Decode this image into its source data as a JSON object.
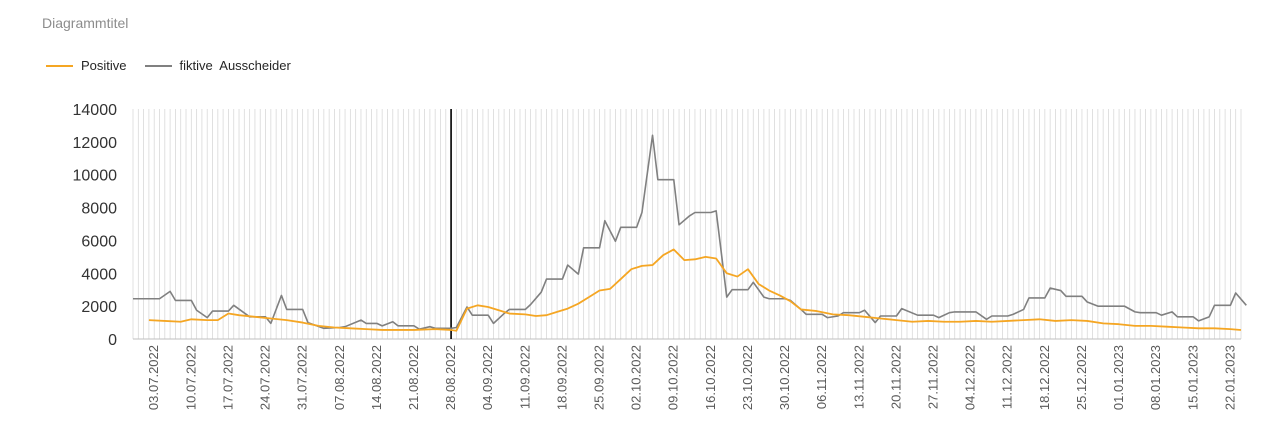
{
  "chart_data": {
    "type": "line",
    "title": "Diagrammtitel",
    "xlabel": "",
    "ylabel": "",
    "ylim": [
      0,
      14000
    ],
    "yticks": [
      0,
      2000,
      4000,
      6000,
      8000,
      10000,
      12000,
      14000
    ],
    "grid": "vertical-daily",
    "legend_position": "top-left",
    "x_start": "2022-06-29",
    "x_end": "2023-01-24",
    "x_tick_labels": [
      "03.07.2022",
      "10.07.2022",
      "17.07.2022",
      "24.07.2022",
      "31.07.2022",
      "07.08.2022",
      "14.08.2022",
      "21.08.2022",
      "28.08.2022",
      "04.09.2022",
      "11.09.2022",
      "18.09.2022",
      "25.09.2022",
      "02.10.2022",
      "09.10.2022",
      "16.10.2022",
      "23.10.2022",
      "30.10.2022",
      "06.11.2022",
      "13.11.2022",
      "20.11.2022",
      "27.11.2022",
      "04.12.2022",
      "11.12.2022",
      "18.12.2022",
      "25.12.2022",
      "01.01.2023",
      "08.01.2023",
      "15.01.2023",
      "22.01.2023"
    ],
    "marker_line_date": "2022-08-28",
    "series": [
      {
        "name": "Positive",
        "color": "#F5A623",
        "points": [
          [
            "2022-07-02",
            1150
          ],
          [
            "2022-07-05",
            1100
          ],
          [
            "2022-07-08",
            1050
          ],
          [
            "2022-07-10",
            1200
          ],
          [
            "2022-07-13",
            1150
          ],
          [
            "2022-07-15",
            1150
          ],
          [
            "2022-07-17",
            1550
          ],
          [
            "2022-07-19",
            1450
          ],
          [
            "2022-07-22",
            1350
          ],
          [
            "2022-07-25",
            1250
          ],
          [
            "2022-07-28",
            1150
          ],
          [
            "2022-07-31",
            1000
          ],
          [
            "2022-08-03",
            800
          ],
          [
            "2022-08-06",
            700
          ],
          [
            "2022-08-09",
            650
          ],
          [
            "2022-08-12",
            600
          ],
          [
            "2022-08-15",
            550
          ],
          [
            "2022-08-18",
            550
          ],
          [
            "2022-08-21",
            550
          ],
          [
            "2022-08-25",
            600
          ],
          [
            "2022-08-28",
            550
          ],
          [
            "2022-08-29",
            500
          ],
          [
            "2022-08-31",
            1850
          ],
          [
            "2022-09-02",
            2050
          ],
          [
            "2022-09-04",
            1950
          ],
          [
            "2022-09-06",
            1750
          ],
          [
            "2022-09-08",
            1550
          ],
          [
            "2022-09-11",
            1500
          ],
          [
            "2022-09-13",
            1400
          ],
          [
            "2022-09-15",
            1450
          ],
          [
            "2022-09-17",
            1650
          ],
          [
            "2022-09-19",
            1850
          ],
          [
            "2022-09-21",
            2150
          ],
          [
            "2022-09-23",
            2550
          ],
          [
            "2022-09-25",
            2950
          ],
          [
            "2022-09-27",
            3050
          ],
          [
            "2022-09-29",
            3650
          ],
          [
            "2022-10-01",
            4250
          ],
          [
            "2022-10-03",
            4450
          ],
          [
            "2022-10-05",
            4500
          ],
          [
            "2022-10-07",
            5100
          ],
          [
            "2022-10-09",
            5450
          ],
          [
            "2022-10-11",
            4800
          ],
          [
            "2022-10-13",
            4850
          ],
          [
            "2022-10-15",
            5000
          ],
          [
            "2022-10-17",
            4900
          ],
          [
            "2022-10-19",
            4000
          ],
          [
            "2022-10-21",
            3800
          ],
          [
            "2022-10-23",
            4250
          ],
          [
            "2022-10-25",
            3350
          ],
          [
            "2022-10-27",
            2950
          ],
          [
            "2022-10-29",
            2650
          ],
          [
            "2022-10-31",
            2300
          ],
          [
            "2022-11-02",
            1800
          ],
          [
            "2022-11-05",
            1700
          ],
          [
            "2022-11-08",
            1500
          ],
          [
            "2022-11-11",
            1450
          ],
          [
            "2022-11-14",
            1350
          ],
          [
            "2022-11-17",
            1250
          ],
          [
            "2022-11-20",
            1150
          ],
          [
            "2022-11-23",
            1050
          ],
          [
            "2022-11-26",
            1100
          ],
          [
            "2022-11-29",
            1050
          ],
          [
            "2022-12-02",
            1050
          ],
          [
            "2022-12-05",
            1100
          ],
          [
            "2022-12-08",
            1050
          ],
          [
            "2022-12-11",
            1100
          ],
          [
            "2022-12-14",
            1150
          ],
          [
            "2022-12-17",
            1200
          ],
          [
            "2022-12-20",
            1100
          ],
          [
            "2022-12-23",
            1150
          ],
          [
            "2022-12-26",
            1100
          ],
          [
            "2022-12-29",
            950
          ],
          [
            "2023-01-01",
            900
          ],
          [
            "2023-01-04",
            800
          ],
          [
            "2023-01-07",
            800
          ],
          [
            "2023-01-10",
            750
          ],
          [
            "2023-01-13",
            700
          ],
          [
            "2023-01-16",
            650
          ],
          [
            "2023-01-19",
            650
          ],
          [
            "2023-01-22",
            600
          ],
          [
            "2023-01-24",
            550
          ]
        ]
      },
      {
        "name": "fiktive  Ausscheider",
        "color": "#808080",
        "points": [
          [
            "2022-06-29",
            2450
          ],
          [
            "2022-07-04",
            2450
          ],
          [
            "2022-07-06",
            2900
          ],
          [
            "2022-07-07",
            2350
          ],
          [
            "2022-07-10",
            2350
          ],
          [
            "2022-07-11",
            1750
          ],
          [
            "2022-07-13",
            1300
          ],
          [
            "2022-07-14",
            1700
          ],
          [
            "2022-07-17",
            1700
          ],
          [
            "2022-07-18",
            2050
          ],
          [
            "2022-07-21",
            1350
          ],
          [
            "2022-07-24",
            1350
          ],
          [
            "2022-07-25",
            950
          ],
          [
            "2022-07-27",
            2650
          ],
          [
            "2022-07-28",
            1800
          ],
          [
            "2022-07-31",
            1800
          ],
          [
            "2022-08-01",
            1000
          ],
          [
            "2022-08-04",
            650
          ],
          [
            "2022-08-07",
            700
          ],
          [
            "2022-08-08",
            750
          ],
          [
            "2022-08-11",
            1150
          ],
          [
            "2022-08-12",
            950
          ],
          [
            "2022-08-14",
            950
          ],
          [
            "2022-08-15",
            800
          ],
          [
            "2022-08-17",
            1050
          ],
          [
            "2022-08-18",
            800
          ],
          [
            "2022-08-21",
            800
          ],
          [
            "2022-08-22",
            600
          ],
          [
            "2022-08-24",
            750
          ],
          [
            "2022-08-25",
            650
          ],
          [
            "2022-08-28",
            650
          ],
          [
            "2022-08-29",
            700
          ],
          [
            "2022-08-31",
            1950
          ],
          [
            "2022-09-01",
            1450
          ],
          [
            "2022-09-04",
            1450
          ],
          [
            "2022-09-05",
            950
          ],
          [
            "2022-09-07",
            1550
          ],
          [
            "2022-09-08",
            1800
          ],
          [
            "2022-09-11",
            1800
          ],
          [
            "2022-09-12",
            2100
          ],
          [
            "2022-09-14",
            2850
          ],
          [
            "2022-09-15",
            3650
          ],
          [
            "2022-09-18",
            3650
          ],
          [
            "2022-09-19",
            4500
          ],
          [
            "2022-09-21",
            3950
          ],
          [
            "2022-09-22",
            5550
          ],
          [
            "2022-09-25",
            5550
          ],
          [
            "2022-09-26",
            7200
          ],
          [
            "2022-09-28",
            5950
          ],
          [
            "2022-09-29",
            6800
          ],
          [
            "2022-10-02",
            6800
          ],
          [
            "2022-10-03",
            7700
          ],
          [
            "2022-10-05",
            12400
          ],
          [
            "2022-10-06",
            9700
          ],
          [
            "2022-10-09",
            9700
          ],
          [
            "2022-10-10",
            6950
          ],
          [
            "2022-10-12",
            7500
          ],
          [
            "2022-10-13",
            7700
          ],
          [
            "2022-10-16",
            7700
          ],
          [
            "2022-10-17",
            7800
          ],
          [
            "2022-10-19",
            2550
          ],
          [
            "2022-10-20",
            3000
          ],
          [
            "2022-10-23",
            3000
          ],
          [
            "2022-10-24",
            3450
          ],
          [
            "2022-10-26",
            2550
          ],
          [
            "2022-10-27",
            2450
          ],
          [
            "2022-10-30",
            2450
          ],
          [
            "2022-10-31",
            2350
          ],
          [
            "2022-11-02",
            1800
          ],
          [
            "2022-11-03",
            1500
          ],
          [
            "2022-11-06",
            1500
          ],
          [
            "2022-11-07",
            1300
          ],
          [
            "2022-11-09",
            1400
          ],
          [
            "2022-11-10",
            1600
          ],
          [
            "2022-11-13",
            1600
          ],
          [
            "2022-11-14",
            1750
          ],
          [
            "2022-11-16",
            1000
          ],
          [
            "2022-11-17",
            1400
          ],
          [
            "2022-11-20",
            1400
          ],
          [
            "2022-11-21",
            1850
          ],
          [
            "2022-11-24",
            1450
          ],
          [
            "2022-11-27",
            1450
          ],
          [
            "2022-11-28",
            1300
          ],
          [
            "2022-11-30",
            1600
          ],
          [
            "2022-12-01",
            1650
          ],
          [
            "2022-12-04",
            1650
          ],
          [
            "2022-12-05",
            1650
          ],
          [
            "2022-12-07",
            1200
          ],
          [
            "2022-12-08",
            1400
          ],
          [
            "2022-12-11",
            1400
          ],
          [
            "2022-12-12",
            1500
          ],
          [
            "2022-12-14",
            1800
          ],
          [
            "2022-12-15",
            2500
          ],
          [
            "2022-12-18",
            2500
          ],
          [
            "2022-12-19",
            3100
          ],
          [
            "2022-12-21",
            2950
          ],
          [
            "2022-12-22",
            2600
          ],
          [
            "2022-12-25",
            2600
          ],
          [
            "2022-12-26",
            2250
          ],
          [
            "2022-12-28",
            2000
          ],
          [
            "2022-12-29",
            2000
          ],
          [
            "2023-01-01",
            2000
          ],
          [
            "2023-01-02",
            2000
          ],
          [
            "2023-01-04",
            1650
          ],
          [
            "2023-01-05",
            1600
          ],
          [
            "2023-01-08",
            1600
          ],
          [
            "2023-01-09",
            1450
          ],
          [
            "2023-01-11",
            1650
          ],
          [
            "2023-01-12",
            1350
          ],
          [
            "2023-01-15",
            1350
          ],
          [
            "2023-01-16",
            1100
          ],
          [
            "2023-01-18",
            1350
          ],
          [
            "2023-01-19",
            2050
          ],
          [
            "2023-01-22",
            2050
          ],
          [
            "2023-01-23",
            2800
          ],
          [
            "2023-01-25",
            2050
          ]
        ]
      }
    ]
  }
}
